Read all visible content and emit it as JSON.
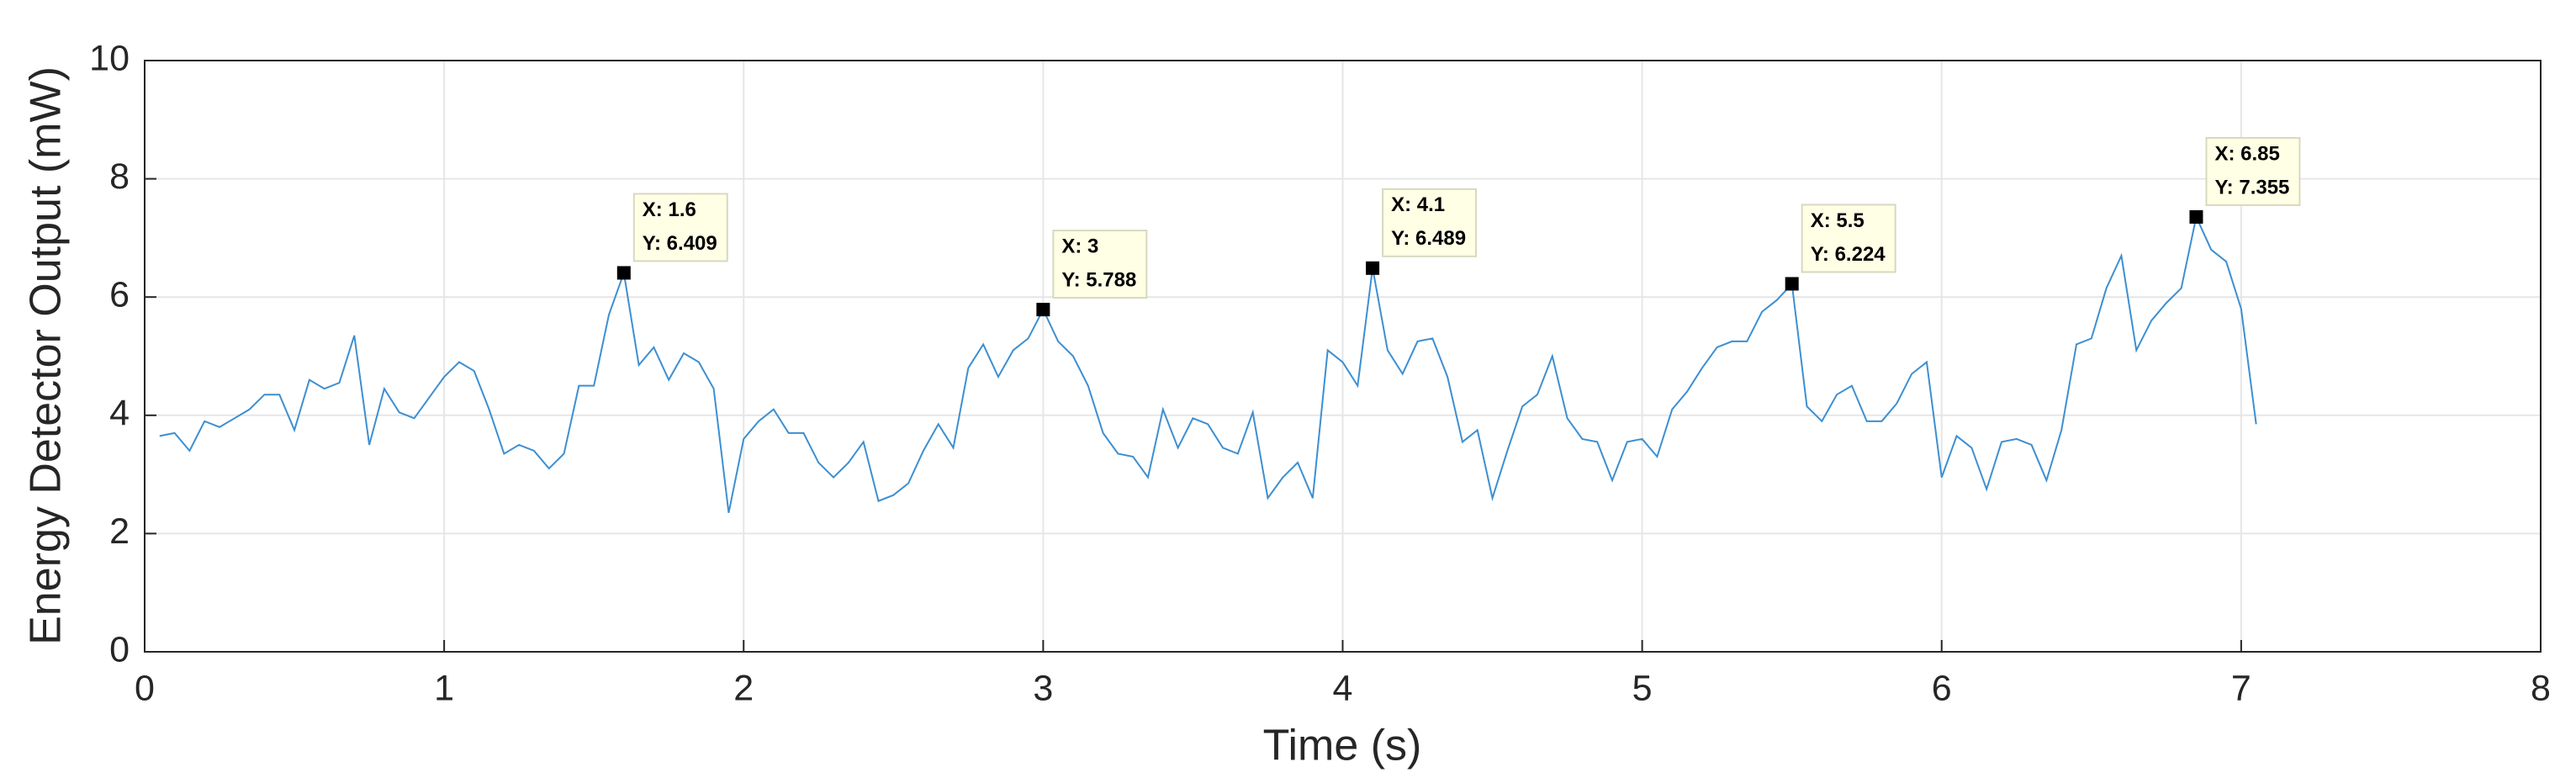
{
  "chart_data": {
    "type": "line",
    "xlabel": "Time (s)",
    "ylabel": "Energy Detector Output (mW)",
    "color": "#3d8fd1",
    "grid": true,
    "xlim": [
      0,
      8
    ],
    "xticks": [
      0,
      1,
      2,
      3,
      4,
      5,
      6,
      7,
      8
    ],
    "ylim": [
      0,
      10
    ],
    "yticks": [
      0,
      2,
      4,
      6,
      8,
      10
    ],
    "x": [
      0.05,
      0.1,
      0.15,
      0.2,
      0.25,
      0.3,
      0.35,
      0.4,
      0.45,
      0.5,
      0.55,
      0.6,
      0.65,
      0.7,
      0.75,
      0.8,
      0.85,
      0.9,
      0.95,
      1.0,
      1.05,
      1.1,
      1.15,
      1.2,
      1.25,
      1.3,
      1.35,
      1.4,
      1.45,
      1.5,
      1.55,
      1.6,
      1.65,
      1.7,
      1.75,
      1.8,
      1.85,
      1.9,
      1.95,
      2.0,
      2.05,
      2.1,
      2.15,
      2.2,
      2.25,
      2.3,
      2.35,
      2.4,
      2.45,
      2.5,
      2.55,
      2.6,
      2.65,
      2.7,
      2.75,
      2.8,
      2.85,
      2.9,
      2.95,
      3.0,
      3.05,
      3.1,
      3.15,
      3.2,
      3.25,
      3.3,
      3.35,
      3.4,
      3.45,
      3.5,
      3.55,
      3.6,
      3.65,
      3.7,
      3.75,
      3.8,
      3.85,
      3.9,
      3.95,
      4.0,
      4.05,
      4.1,
      4.15,
      4.2,
      4.25,
      4.3,
      4.35,
      4.4,
      4.45,
      4.5,
      4.55,
      4.6,
      4.65,
      4.7,
      4.75,
      4.8,
      4.85,
      4.9,
      4.95,
      5.0,
      5.05,
      5.1,
      5.15,
      5.2,
      5.25,
      5.3,
      5.35,
      5.4,
      5.45,
      5.5,
      5.55,
      5.6,
      5.65,
      5.7,
      5.75,
      5.8,
      5.85,
      5.9,
      5.95,
      6.0,
      6.05,
      6.1,
      6.15,
      6.2,
      6.25,
      6.3,
      6.35,
      6.4,
      6.45,
      6.5,
      6.55,
      6.6,
      6.65,
      6.7,
      6.75,
      6.8,
      6.85,
      6.9,
      6.95,
      7.0,
      7.05
    ],
    "values": [
      3.65,
      3.7,
      3.4,
      3.9,
      3.8,
      3.95,
      4.1,
      4.35,
      4.35,
      3.75,
      4.6,
      4.45,
      4.55,
      5.35,
      3.5,
      4.45,
      4.05,
      3.95,
      4.3,
      4.65,
      4.9,
      4.75,
      4.1,
      3.35,
      3.5,
      3.4,
      3.1,
      3.35,
      4.5,
      4.5,
      5.7,
      6.409,
      4.85,
      5.15,
      4.6,
      5.05,
      4.9,
      4.45,
      2.35,
      3.6,
      3.9,
      4.1,
      3.7,
      3.7,
      3.2,
      2.95,
      3.2,
      3.55,
      2.55,
      2.65,
      2.85,
      3.4,
      3.85,
      3.45,
      4.8,
      5.2,
      4.65,
      5.1,
      5.3,
      5.788,
      5.25,
      5.0,
      4.5,
      3.7,
      3.35,
      3.3,
      2.95,
      4.1,
      3.45,
      3.95,
      3.85,
      3.45,
      3.35,
      4.05,
      2.6,
      2.95,
      3.2,
      2.6,
      5.1,
      4.9,
      4.5,
      6.489,
      5.1,
      4.7,
      5.25,
      5.3,
      4.65,
      3.55,
      3.75,
      2.6,
      3.4,
      4.15,
      4.35,
      5.0,
      3.95,
      3.6,
      3.55,
      2.9,
      3.55,
      3.6,
      3.3,
      4.1,
      4.4,
      4.8,
      5.15,
      5.25,
      5.25,
      5.75,
      5.95,
      6.224,
      4.15,
      3.9,
      4.35,
      4.5,
      3.9,
      3.9,
      4.2,
      4.7,
      4.9,
      2.95,
      3.65,
      3.45,
      2.75,
      3.55,
      3.6,
      3.5,
      2.9,
      3.75,
      5.2,
      5.3,
      6.15,
      6.7,
      5.1,
      5.6,
      5.9,
      6.15,
      7.355,
      6.8,
      6.6,
      5.8,
      3.85
    ],
    "data_tips": [
      {
        "x": 1.6,
        "y": 6.409,
        "labels": [
          "X: 1.6",
          "Y: 6.409"
        ]
      },
      {
        "x": 3,
        "y": 5.788,
        "labels": [
          "X: 3",
          "Y: 5.788"
        ]
      },
      {
        "x": 4.1,
        "y": 6.489,
        "labels": [
          "X: 4.1",
          "Y: 6.489"
        ]
      },
      {
        "x": 5.5,
        "y": 6.224,
        "labels": [
          "X: 5.5",
          "Y: 6.224"
        ]
      },
      {
        "x": 6.85,
        "y": 7.355,
        "labels": [
          "X: 6.85",
          "Y: 7.355"
        ]
      }
    ]
  }
}
